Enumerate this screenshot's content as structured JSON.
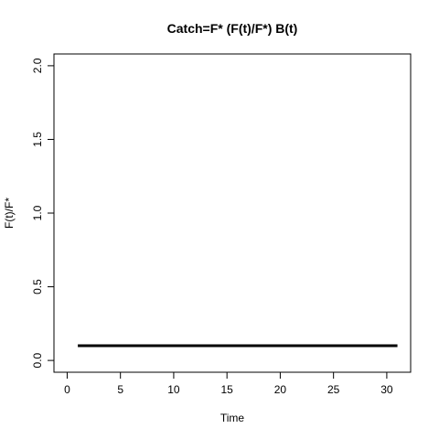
{
  "chart_data": {
    "type": "line",
    "title": "Catch=F* (F(t)/F*) B(t)",
    "xlabel": "Time",
    "ylabel": "F(t)/F*",
    "xlim": [
      0,
      31
    ],
    "ylim": [
      0,
      2
    ],
    "x_ticks": [
      0,
      5,
      10,
      15,
      20,
      25,
      30
    ],
    "x_tick_labels": [
      "0",
      "5",
      "10",
      "15",
      "20",
      "25",
      "30"
    ],
    "y_ticks": [
      0,
      0.5,
      1,
      1.5,
      2
    ],
    "y_tick_labels": [
      "0.0",
      "0.5",
      "1.0",
      "1.5",
      "2.0"
    ],
    "grid": false,
    "series": [
      {
        "x": [
          1,
          31
        ],
        "values": [
          0.1,
          0.1
        ],
        "color": "#000000"
      }
    ]
  }
}
